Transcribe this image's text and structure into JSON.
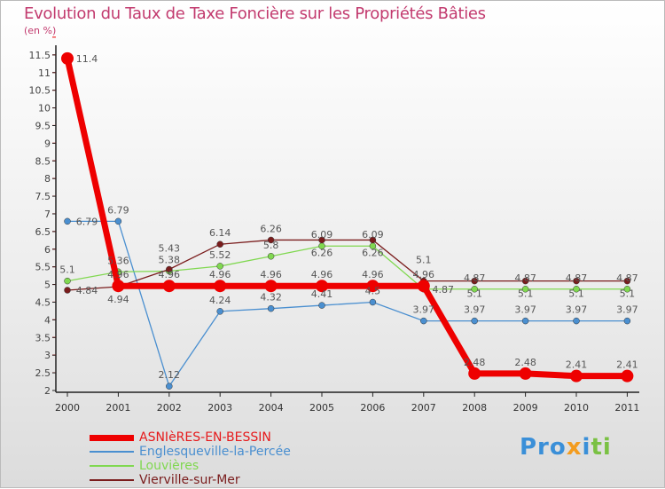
{
  "chart_data": {
    "type": "line",
    "title": "Evolution du Taux de Taxe Foncière sur les Propriétés Bâties",
    "ylabel": "(en %)",
    "xlabel": "",
    "ylim": [
      2,
      11.5
    ],
    "yticks": [
      "2",
      "2.5",
      "3",
      "3.5",
      "4",
      "4.5",
      "5",
      "5.5",
      "6",
      "6.5",
      "7",
      "7.5",
      "8",
      "8.5",
      "9",
      "9.5",
      "10",
      "10.5",
      "11",
      "11.5"
    ],
    "x": [
      "2000",
      "2001",
      "2002",
      "2003",
      "2004",
      "2005",
      "2006",
      "2007",
      "2008",
      "2009",
      "2010",
      "2011"
    ],
    "legend_position": "bottom-left",
    "series": [
      {
        "name": "ASNIèRES-EN-BESSIN",
        "color": "#ee0000",
        "values": [
          11.4,
          4.96,
          4.96,
          4.96,
          4.96,
          4.96,
          4.96,
          4.96,
          2.48,
          2.48,
          2.41,
          2.41
        ]
      },
      {
        "name": "Englesqueville-la-Percée",
        "color": "#4a8fd0",
        "values": [
          6.79,
          6.79,
          2.12,
          4.24,
          4.32,
          4.41,
          4.5,
          3.97,
          3.97,
          3.97,
          3.97,
          3.97
        ]
      },
      {
        "name": "Louvières",
        "color": "#80d850",
        "values": [
          5.1,
          5.36,
          5.38,
          5.52,
          5.8,
          6.09,
          6.09,
          4.87,
          4.87,
          4.87,
          4.87,
          4.87
        ]
      },
      {
        "name": "Vierville-sur-Mer",
        "color": "#7a1c1c",
        "values": [
          4.84,
          4.94,
          5.43,
          6.14,
          6.26,
          6.26,
          6.26,
          5.1,
          5.1,
          5.1,
          5.1,
          5.1
        ]
      }
    ]
  },
  "logo": "Proxiti"
}
